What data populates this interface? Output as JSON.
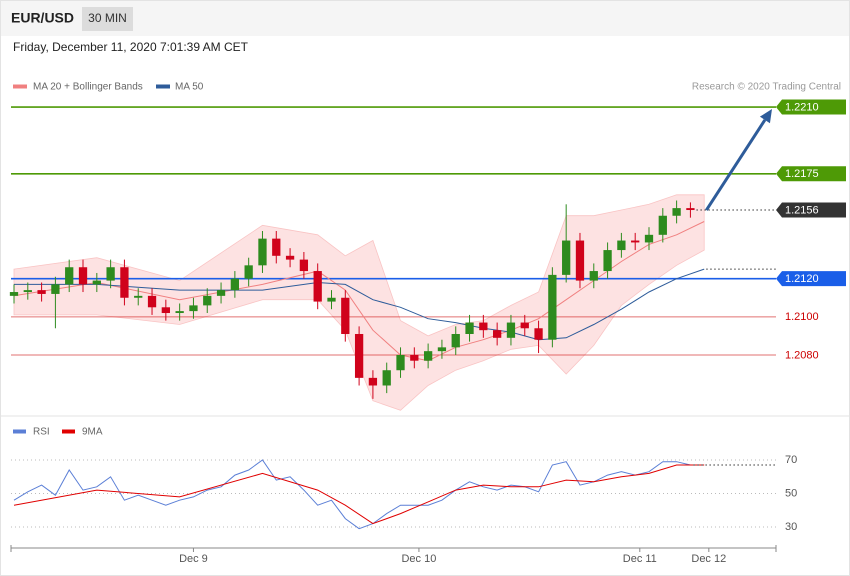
{
  "header": {
    "symbol": "EUR/USD",
    "timeframe": "30 MIN",
    "datetime": "Friday, December 11, 2020 7:01:39 AM CET",
    "credit": "Research © 2020 Trading Central"
  },
  "chart_data": [
    {
      "type": "candlestick",
      "x": [
        0,
        3,
        6,
        9,
        12,
        15,
        18,
        21,
        24,
        27,
        30,
        33,
        36,
        39,
        42,
        45,
        48,
        51,
        54,
        57,
        60,
        63,
        66,
        69,
        72,
        75,
        78,
        81,
        84,
        87,
        90,
        93,
        96,
        99,
        102,
        105,
        108,
        111,
        114,
        117,
        120,
        123,
        126,
        129,
        132,
        135,
        138,
        141,
        144,
        147
      ],
      "open": [
        1.2111,
        1.2113,
        1.2114,
        1.2112,
        1.2117,
        1.2126,
        1.2117,
        1.2119,
        1.2126,
        1.211,
        1.2111,
        1.2105,
        1.2102,
        1.2103,
        1.2106,
        1.2111,
        1.2114,
        1.212,
        1.2127,
        1.2141,
        1.2132,
        1.213,
        1.2124,
        1.2108,
        1.211,
        1.2091,
        1.2068,
        1.2064,
        1.2072,
        1.208,
        1.2077,
        1.2082,
        1.2084,
        1.2091,
        1.2097,
        1.2093,
        1.2089,
        1.2097,
        1.2094,
        1.2088,
        1.2122,
        1.214,
        1.2119,
        1.2124,
        1.2135,
        1.214,
        1.2139,
        1.2143,
        1.2153,
        1.2157
      ],
      "high": [
        1.2117,
        1.2118,
        1.2118,
        1.2121,
        1.213,
        1.213,
        1.2123,
        1.213,
        1.213,
        1.2115,
        1.2115,
        1.2109,
        1.2107,
        1.211,
        1.2115,
        1.2118,
        1.2124,
        1.2131,
        1.2145,
        1.2145,
        1.2136,
        1.2134,
        1.2128,
        1.2114,
        1.2114,
        1.2095,
        1.2072,
        1.2076,
        1.2084,
        1.2084,
        1.2086,
        1.2088,
        1.2095,
        1.2101,
        1.2101,
        1.2097,
        1.2101,
        1.2101,
        1.2098,
        1.2126,
        1.2159,
        1.2144,
        1.2128,
        1.2139,
        1.2144,
        1.2144,
        1.2147,
        1.2157,
        1.2161,
        1.216
      ],
      "low": [
        1.2107,
        1.2109,
        1.2108,
        1.2094,
        1.2113,
        1.2113,
        1.2113,
        1.2115,
        1.2106,
        1.2106,
        1.2101,
        1.2098,
        1.2098,
        1.2099,
        1.2102,
        1.2107,
        1.211,
        1.2116,
        1.2123,
        1.2128,
        1.2126,
        1.212,
        1.2104,
        1.2104,
        1.2087,
        1.2064,
        1.2057,
        1.206,
        1.2068,
        1.2073,
        1.2073,
        1.2078,
        1.208,
        1.2087,
        1.2089,
        1.2085,
        1.2085,
        1.209,
        1.2081,
        1.2084,
        1.2118,
        1.2115,
        1.2115,
        1.212,
        1.2131,
        1.2135,
        1.2135,
        1.2139,
        1.2149,
        1.2152
      ],
      "close": [
        1.2113,
        1.2114,
        1.2112,
        1.2117,
        1.2126,
        1.2117,
        1.2119,
        1.2126,
        1.211,
        1.2111,
        1.2105,
        1.2102,
        1.2103,
        1.2106,
        1.2111,
        1.2114,
        1.212,
        1.2127,
        1.2141,
        1.2132,
        1.213,
        1.2124,
        1.2108,
        1.211,
        1.2091,
        1.2068,
        1.2064,
        1.2072,
        1.208,
        1.2077,
        1.2082,
        1.2084,
        1.2091,
        1.2097,
        1.2093,
        1.2089,
        1.2097,
        1.2094,
        1.2088,
        1.2122,
        1.214,
        1.2119,
        1.2124,
        1.2135,
        1.214,
        1.2139,
        1.2143,
        1.2153,
        1.2157,
        1.2156
      ],
      "up_color": "#2e8b1e",
      "down_color": "#d0021b",
      "xlim": [
        -0.65,
        165.6
      ],
      "ylim": [
        1.2049,
        1.2214
      ],
      "levels": [
        {
          "value": 1.221,
          "label": "1.2210",
          "color": "#4e9a06",
          "style": "solid",
          "tag": true
        },
        {
          "value": 1.2175,
          "label": "1.2175",
          "color": "#4e9a06",
          "style": "solid",
          "tag": true
        },
        {
          "value": 1.2156,
          "label": "1.2156",
          "color": "#333333",
          "style": "dotted",
          "tag": true
        },
        {
          "value": 1.212,
          "label": "1.2120",
          "color": "#1a5ee8",
          "style": "solid",
          "tag": true
        },
        {
          "value": 1.21,
          "label": "1.2100",
          "color": "#cc0000",
          "style": "solid",
          "tag": false
        },
        {
          "value": 1.208,
          "label": "1.2080",
          "color": "#cc0000",
          "style": "solid",
          "tag": false
        }
      ],
      "bollinger": {
        "name": "MA 20 + Bollinger Bands",
        "color": "#f08080",
        "band_color": "#fde2e2",
        "x": [
          0,
          18,
          36,
          54,
          66,
          72,
          78,
          84,
          90,
          96,
          102,
          108,
          114,
          120,
          126,
          132,
          138,
          144,
          150
        ],
        "ma": [
          1.2111,
          1.2118,
          1.2109,
          1.2117,
          1.2124,
          1.2114,
          1.2093,
          1.208,
          1.2077,
          1.2084,
          1.2088,
          1.2093,
          1.2099,
          1.2109,
          1.2119,
          1.2129,
          1.2138,
          1.2143,
          1.215
        ],
        "upper": [
          1.2125,
          1.2131,
          1.2119,
          1.2148,
          1.2143,
          1.2132,
          1.214,
          1.2098,
          1.209,
          1.2096,
          1.2098,
          1.2106,
          1.2113,
          1.2153,
          1.2153,
          1.2156,
          1.2159,
          1.2164,
          1.2164
        ],
        "lower": [
          1.2101,
          1.2101,
          1.2096,
          1.2109,
          1.2109,
          1.2093,
          1.2056,
          1.2051,
          1.2064,
          1.2072,
          1.2077,
          1.2083,
          1.2085,
          1.207,
          1.2085,
          1.2106,
          1.2117,
          1.2127,
          1.2135
        ]
      },
      "ma50": {
        "name": "MA 50",
        "color": "#2e5c9a",
        "x": [
          0,
          18,
          36,
          54,
          66,
          72,
          78,
          84,
          90,
          96,
          102,
          108,
          114,
          120,
          126,
          132,
          138,
          144,
          150
        ],
        "values": [
          1.2117,
          1.2117,
          1.2114,
          1.2114,
          1.2118,
          1.2117,
          1.2109,
          1.2105,
          1.2099,
          1.2097,
          1.2094,
          1.2092,
          1.2088,
          1.2089,
          1.2096,
          1.2104,
          1.2113,
          1.212,
          1.2125
        ]
      }
    },
    {
      "type": "line",
      "series": [
        {
          "name": "RSI",
          "color": "#5b7fd6",
          "x": [
            0,
            3,
            6,
            9,
            12,
            15,
            18,
            21,
            24,
            27,
            30,
            33,
            36,
            39,
            42,
            45,
            48,
            51,
            54,
            57,
            60,
            63,
            66,
            69,
            72,
            75,
            78,
            81,
            84,
            87,
            90,
            93,
            96,
            99,
            102,
            105,
            108,
            111,
            114,
            117,
            120,
            123,
            126,
            129,
            132,
            135,
            138,
            141,
            144,
            147
          ],
          "values": [
            46,
            51,
            55,
            49,
            64,
            52,
            54,
            60,
            46,
            49,
            46,
            43,
            46,
            48,
            52,
            54,
            61,
            64,
            70,
            58,
            60,
            52,
            43,
            46,
            35,
            29,
            32,
            38,
            43,
            43,
            43,
            46,
            52,
            57,
            54,
            52,
            55,
            54,
            51,
            67,
            69,
            55,
            57,
            61,
            63,
            61,
            63,
            69,
            69,
            67
          ]
        },
        {
          "name": "9MA",
          "color": "#e00000",
          "x": [
            0,
            18,
            36,
            54,
            66,
            72,
            78,
            84,
            90,
            96,
            102,
            108,
            114,
            120,
            126,
            132,
            138,
            144,
            150
          ],
          "values": [
            43,
            52,
            48,
            62,
            52,
            43,
            32,
            38,
            45,
            52,
            55,
            54,
            54,
            58,
            57,
            60,
            62,
            67,
            67
          ]
        }
      ],
      "xlim": [
        -0.65,
        165.6
      ],
      "ylim": [
        20,
        82
      ],
      "yticks": [
        70,
        50,
        30
      ],
      "xticks": [
        {
          "value": 39,
          "label": "Dec 9"
        },
        {
          "value": 88,
          "label": "Dec 10"
        },
        {
          "value": 136,
          "label": "Dec 11"
        },
        {
          "value": 151,
          "label": "Dec 12"
        }
      ]
    }
  ]
}
